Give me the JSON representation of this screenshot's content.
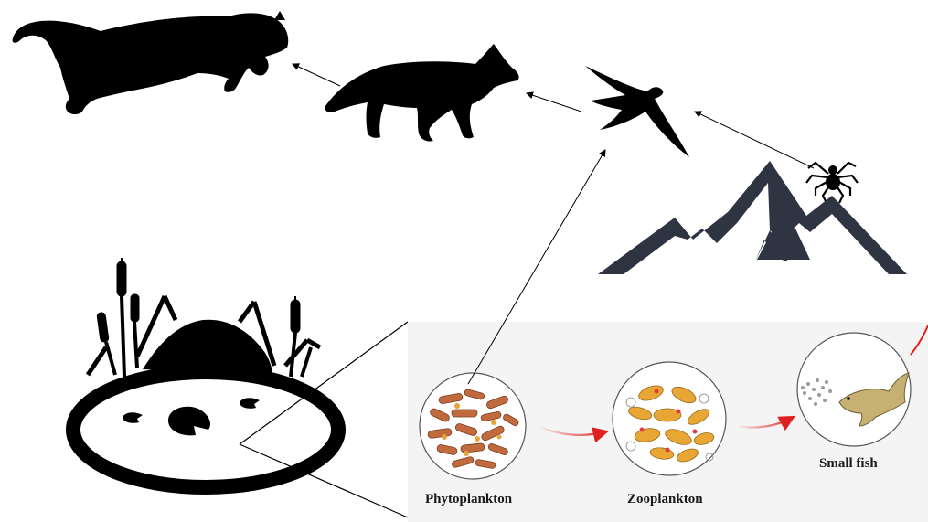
{
  "labels": {
    "phytoplankton": "Phytoplankton",
    "zooplankton": "Zooplankton",
    "small_fish": "Small fish"
  },
  "colors": {
    "silhouette": "#000000",
    "mountain": "#2f3443",
    "inset_bg": "#f4f4f4",
    "red_arrow": "#e0201c",
    "phytoplankton": "#c06a3e",
    "zooplankton": "#e8a635",
    "fish": "#c6b173"
  },
  "icons": {
    "cougar": "cougar-silhouette-icon",
    "coyote": "coyote-silhouette-icon",
    "swallow": "swallow-silhouette-icon",
    "spider": "spider-icon",
    "mountains": "mountains-icon",
    "pond": "pond-with-cattails-icon"
  }
}
